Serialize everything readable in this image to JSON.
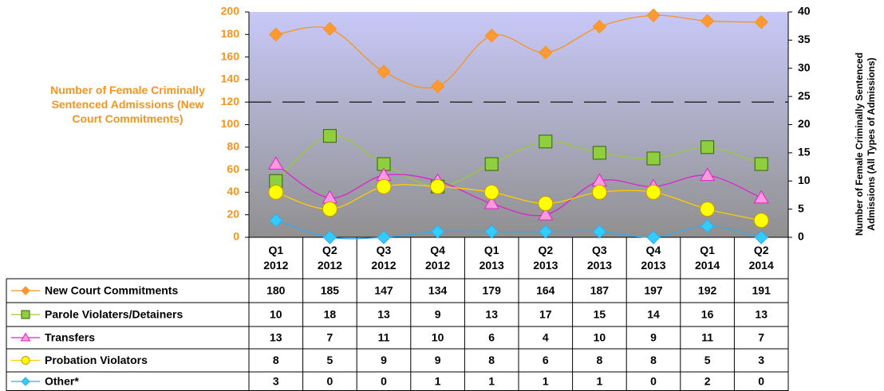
{
  "chart_data": {
    "type": "line",
    "y_label": "Number of Female Criminally Sentenced Admissions (New Court Commitments)",
    "y2_label": "Number of Female Criminally Sentenced Admissions (All Types of Admissions)",
    "categories": [
      "Q1 2012",
      "Q2 2012",
      "Q3 2012",
      "Q4 2012",
      "Q1 2013",
      "Q2 2013",
      "Q3 2013",
      "Q4 2013",
      "Q1 2014",
      "Q2 2014"
    ],
    "ylim": [
      0,
      200
    ],
    "yticks": [
      0,
      20,
      40,
      60,
      80,
      100,
      120,
      140,
      160,
      180,
      200
    ],
    "y2lim": [
      0,
      40
    ],
    "y2ticks": [
      0,
      5,
      10,
      15,
      20,
      25,
      30,
      35,
      40
    ],
    "series": [
      {
        "name": "New Court Commitments",
        "color": "#f7941d",
        "marker": "diamond",
        "marker_color": "#ff9933",
        "values": [
          180,
          185,
          147,
          134,
          179,
          164,
          187,
          197,
          192,
          191
        ]
      },
      {
        "name": "Parole Violaters/Detainers",
        "color": "#99cc33",
        "marker": "square",
        "marker_color": "#8fce3f",
        "axis": "y2",
        "values": [
          10,
          18,
          13,
          9,
          13,
          17,
          15,
          14,
          16,
          13
        ]
      },
      {
        "name": "Transfers",
        "color": "#dd22cc",
        "marker": "triangle",
        "marker_color": "#ff99dd",
        "axis": "y2",
        "values": [
          13,
          7,
          11,
          10,
          6,
          4,
          10,
          9,
          11,
          7
        ]
      },
      {
        "name": "Probation Violators",
        "color": "#ffcc00",
        "marker": "circle",
        "marker_color": "#ffff00",
        "axis": "y2",
        "values": [
          8,
          5,
          9,
          9,
          8,
          6,
          8,
          8,
          5,
          3
        ]
      },
      {
        "name": "Other*",
        "color": "#33aaee",
        "marker": "diamond",
        "marker_color": "#33ccff",
        "axis": "y2",
        "values": [
          3,
          0,
          0,
          1,
          1,
          1,
          1,
          0,
          2,
          0
        ]
      }
    ]
  }
}
